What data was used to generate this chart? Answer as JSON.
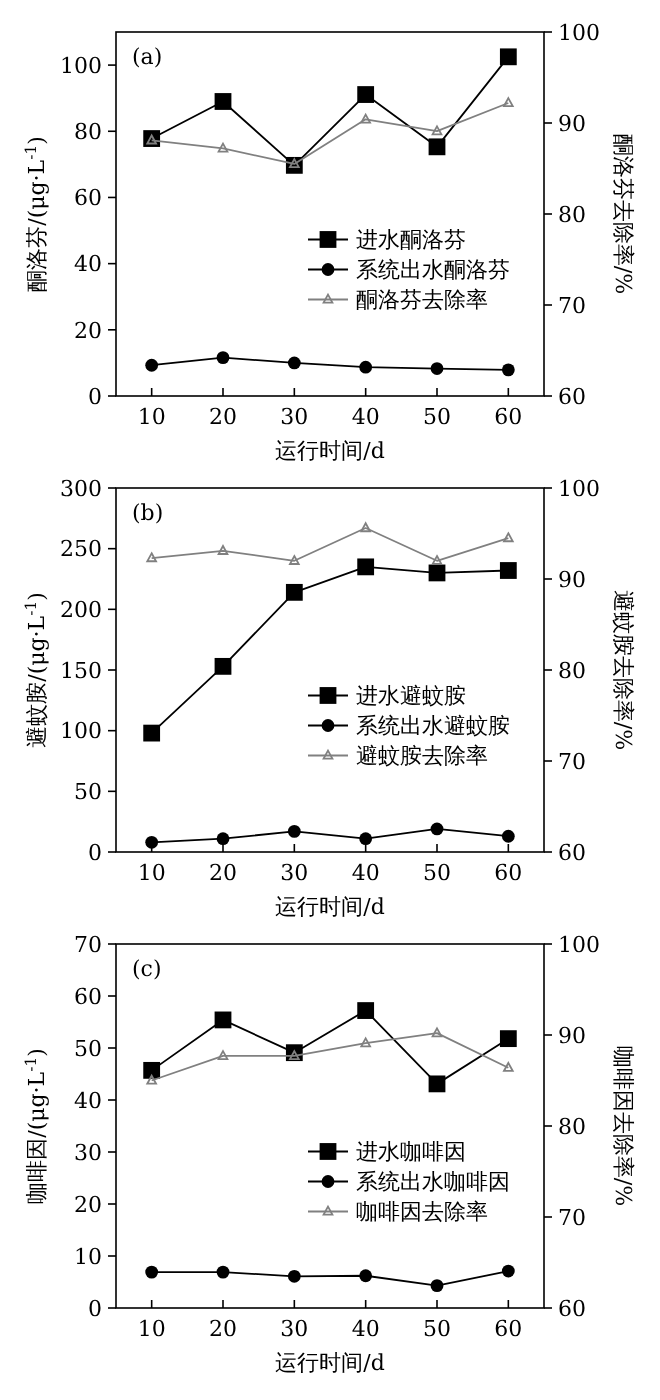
{
  "chart_data": [
    {
      "type": "line",
      "annotations": [
        "(a)"
      ],
      "xlabel": "运行时间/d",
      "ylabel": "酮洛芬/(μg·L$^{-1}$)",
      "y2label": "酮洛芬去除率/%",
      "x": [
        10,
        20,
        30,
        40,
        50,
        60
      ],
      "xlim": [
        5,
        65
      ],
      "xticks": [
        10,
        20,
        30,
        40,
        50,
        60
      ],
      "ylim": [
        0,
        110
      ],
      "yticks": [
        0,
        20,
        40,
        60,
        80,
        100
      ],
      "y2lim": [
        60,
        100
      ],
      "y2ticks": [
        60,
        70,
        80,
        90,
        100
      ],
      "legend": "right",
      "series": [
        {
          "name": "进水酮洛芬",
          "color": "#000000",
          "marker": "square",
          "values": [
            77.8,
            89,
            69.7,
            91.1,
            75.3,
            102.5
          ]
        },
        {
          "name": "系统出水酮洛芬",
          "color": "#000000",
          "marker": "circle",
          "values": [
            9.3,
            11.6,
            10,
            8.7,
            8.3,
            7.9
          ]
        },
        {
          "name": "酮洛芬去除率",
          "color": "#808080",
          "marker": "triangle",
          "axis": "y2",
          "values": [
            88.1,
            87.2,
            85.5,
            90.4,
            89.1,
            92.2
          ]
        }
      ]
    },
    {
      "type": "line",
      "annotations": [
        "(b)"
      ],
      "xlabel": "运行时间/d",
      "ylabel": "避蚊胺/(μg·L$^{-1}$)",
      "y2label": "避蚊胺去除率/%",
      "x": [
        10,
        20,
        30,
        40,
        50,
        60
      ],
      "xlim": [
        5,
        65
      ],
      "xticks": [
        10,
        20,
        30,
        40,
        50,
        60
      ],
      "ylim": [
        0,
        300
      ],
      "yticks": [
        0,
        50,
        100,
        150,
        200,
        250,
        300
      ],
      "y2lim": [
        60,
        100
      ],
      "y2ticks": [
        60,
        70,
        80,
        90,
        100
      ],
      "legend": "right",
      "series": [
        {
          "name": "进水避蚊胺",
          "color": "#000000",
          "marker": "square",
          "values": [
            98,
            153,
            214,
            235,
            230,
            232
          ]
        },
        {
          "name": "系统出水避蚊胺",
          "color": "#000000",
          "marker": "circle",
          "values": [
            8,
            11,
            17,
            11,
            19,
            13
          ]
        },
        {
          "name": "避蚊胺去除率",
          "color": "#808080",
          "marker": "triangle",
          "axis": "y2",
          "values": [
            92.3,
            93.1,
            92,
            95.6,
            92,
            94.5
          ]
        }
      ]
    },
    {
      "type": "line",
      "annotations": [
        "(c)"
      ],
      "xlabel": "运行时间/d",
      "ylabel": "咖啡因/(μg·L$^{-1}$)",
      "y2label": "咖啡因去除率/%",
      "x": [
        10,
        20,
        30,
        40,
        50,
        60
      ],
      "xlim": [
        5,
        65
      ],
      "xticks": [
        10,
        20,
        30,
        40,
        50,
        60
      ],
      "ylim": [
        0,
        70
      ],
      "yticks": [
        0,
        10,
        20,
        30,
        40,
        50,
        60,
        70
      ],
      "y2lim": [
        60,
        100
      ],
      "y2ticks": [
        60,
        70,
        80,
        90,
        100
      ],
      "legend": "right",
      "series": [
        {
          "name": "进水咖啡因",
          "color": "#000000",
          "marker": "square",
          "values": [
            45.7,
            55.4,
            49.1,
            57.2,
            43.1,
            51.8
          ]
        },
        {
          "name": "系统出水咖啡因",
          "color": "#000000",
          "marker": "circle",
          "values": [
            6.9,
            6.9,
            6.1,
            6.2,
            4.3,
            7.1
          ]
        },
        {
          "name": "咖啡因去除率",
          "color": "#808080",
          "marker": "triangle",
          "axis": "y2",
          "values": [
            85.0,
            87.7,
            87.7,
            89.1,
            90.2,
            86.4
          ]
        }
      ]
    }
  ]
}
